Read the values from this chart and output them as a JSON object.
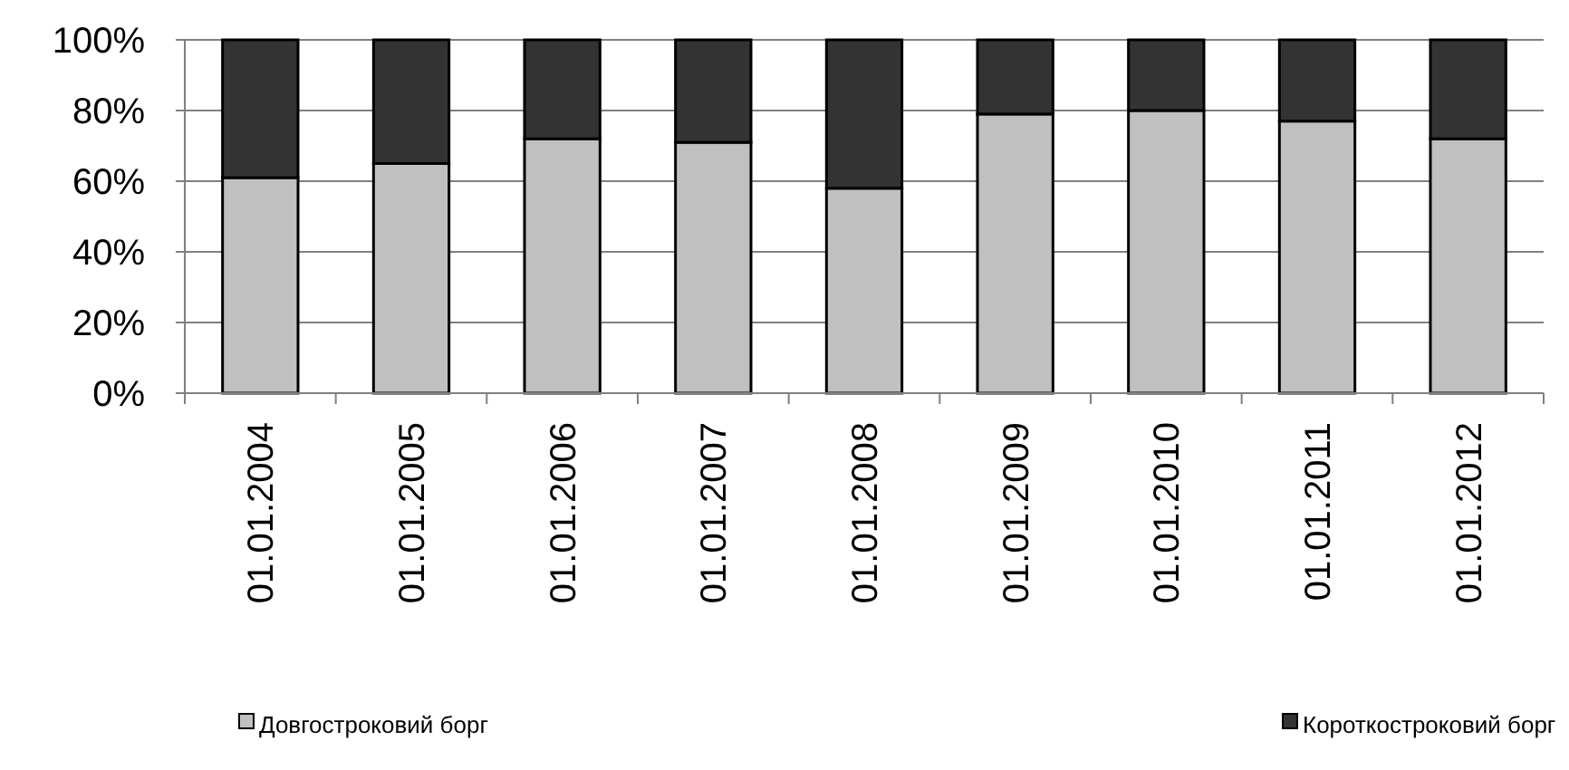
{
  "chart_data": {
    "type": "bar",
    "stacked": true,
    "categories": [
      "01.01.2004",
      "01.01.2005",
      "01.01.2006",
      "01.01.2007",
      "01.01.2008",
      "01.01.2009",
      "01.01.2010",
      "01.01.2011",
      "01.01.2012"
    ],
    "series": [
      {
        "name": "Довгостроковий борг",
        "color": "#c0c0c0",
        "values": [
          61,
          65,
          72,
          71,
          58,
          79,
          80,
          77,
          72
        ]
      },
      {
        "name": "Короткостроковий борг",
        "color": "#333333",
        "values": [
          39,
          35,
          28,
          29,
          42,
          21,
          20,
          23,
          28
        ]
      }
    ],
    "ylim": [
      0,
      100
    ],
    "yticks": [
      {
        "value": 0,
        "label": "0%"
      },
      {
        "value": 20,
        "label": "20%"
      },
      {
        "value": 40,
        "label": "40%"
      },
      {
        "value": 60,
        "label": "60%"
      },
      {
        "value": 80,
        "label": "80%"
      },
      {
        "value": 100,
        "label": "100%"
      }
    ],
    "grid": "y",
    "legend": "bottom"
  }
}
